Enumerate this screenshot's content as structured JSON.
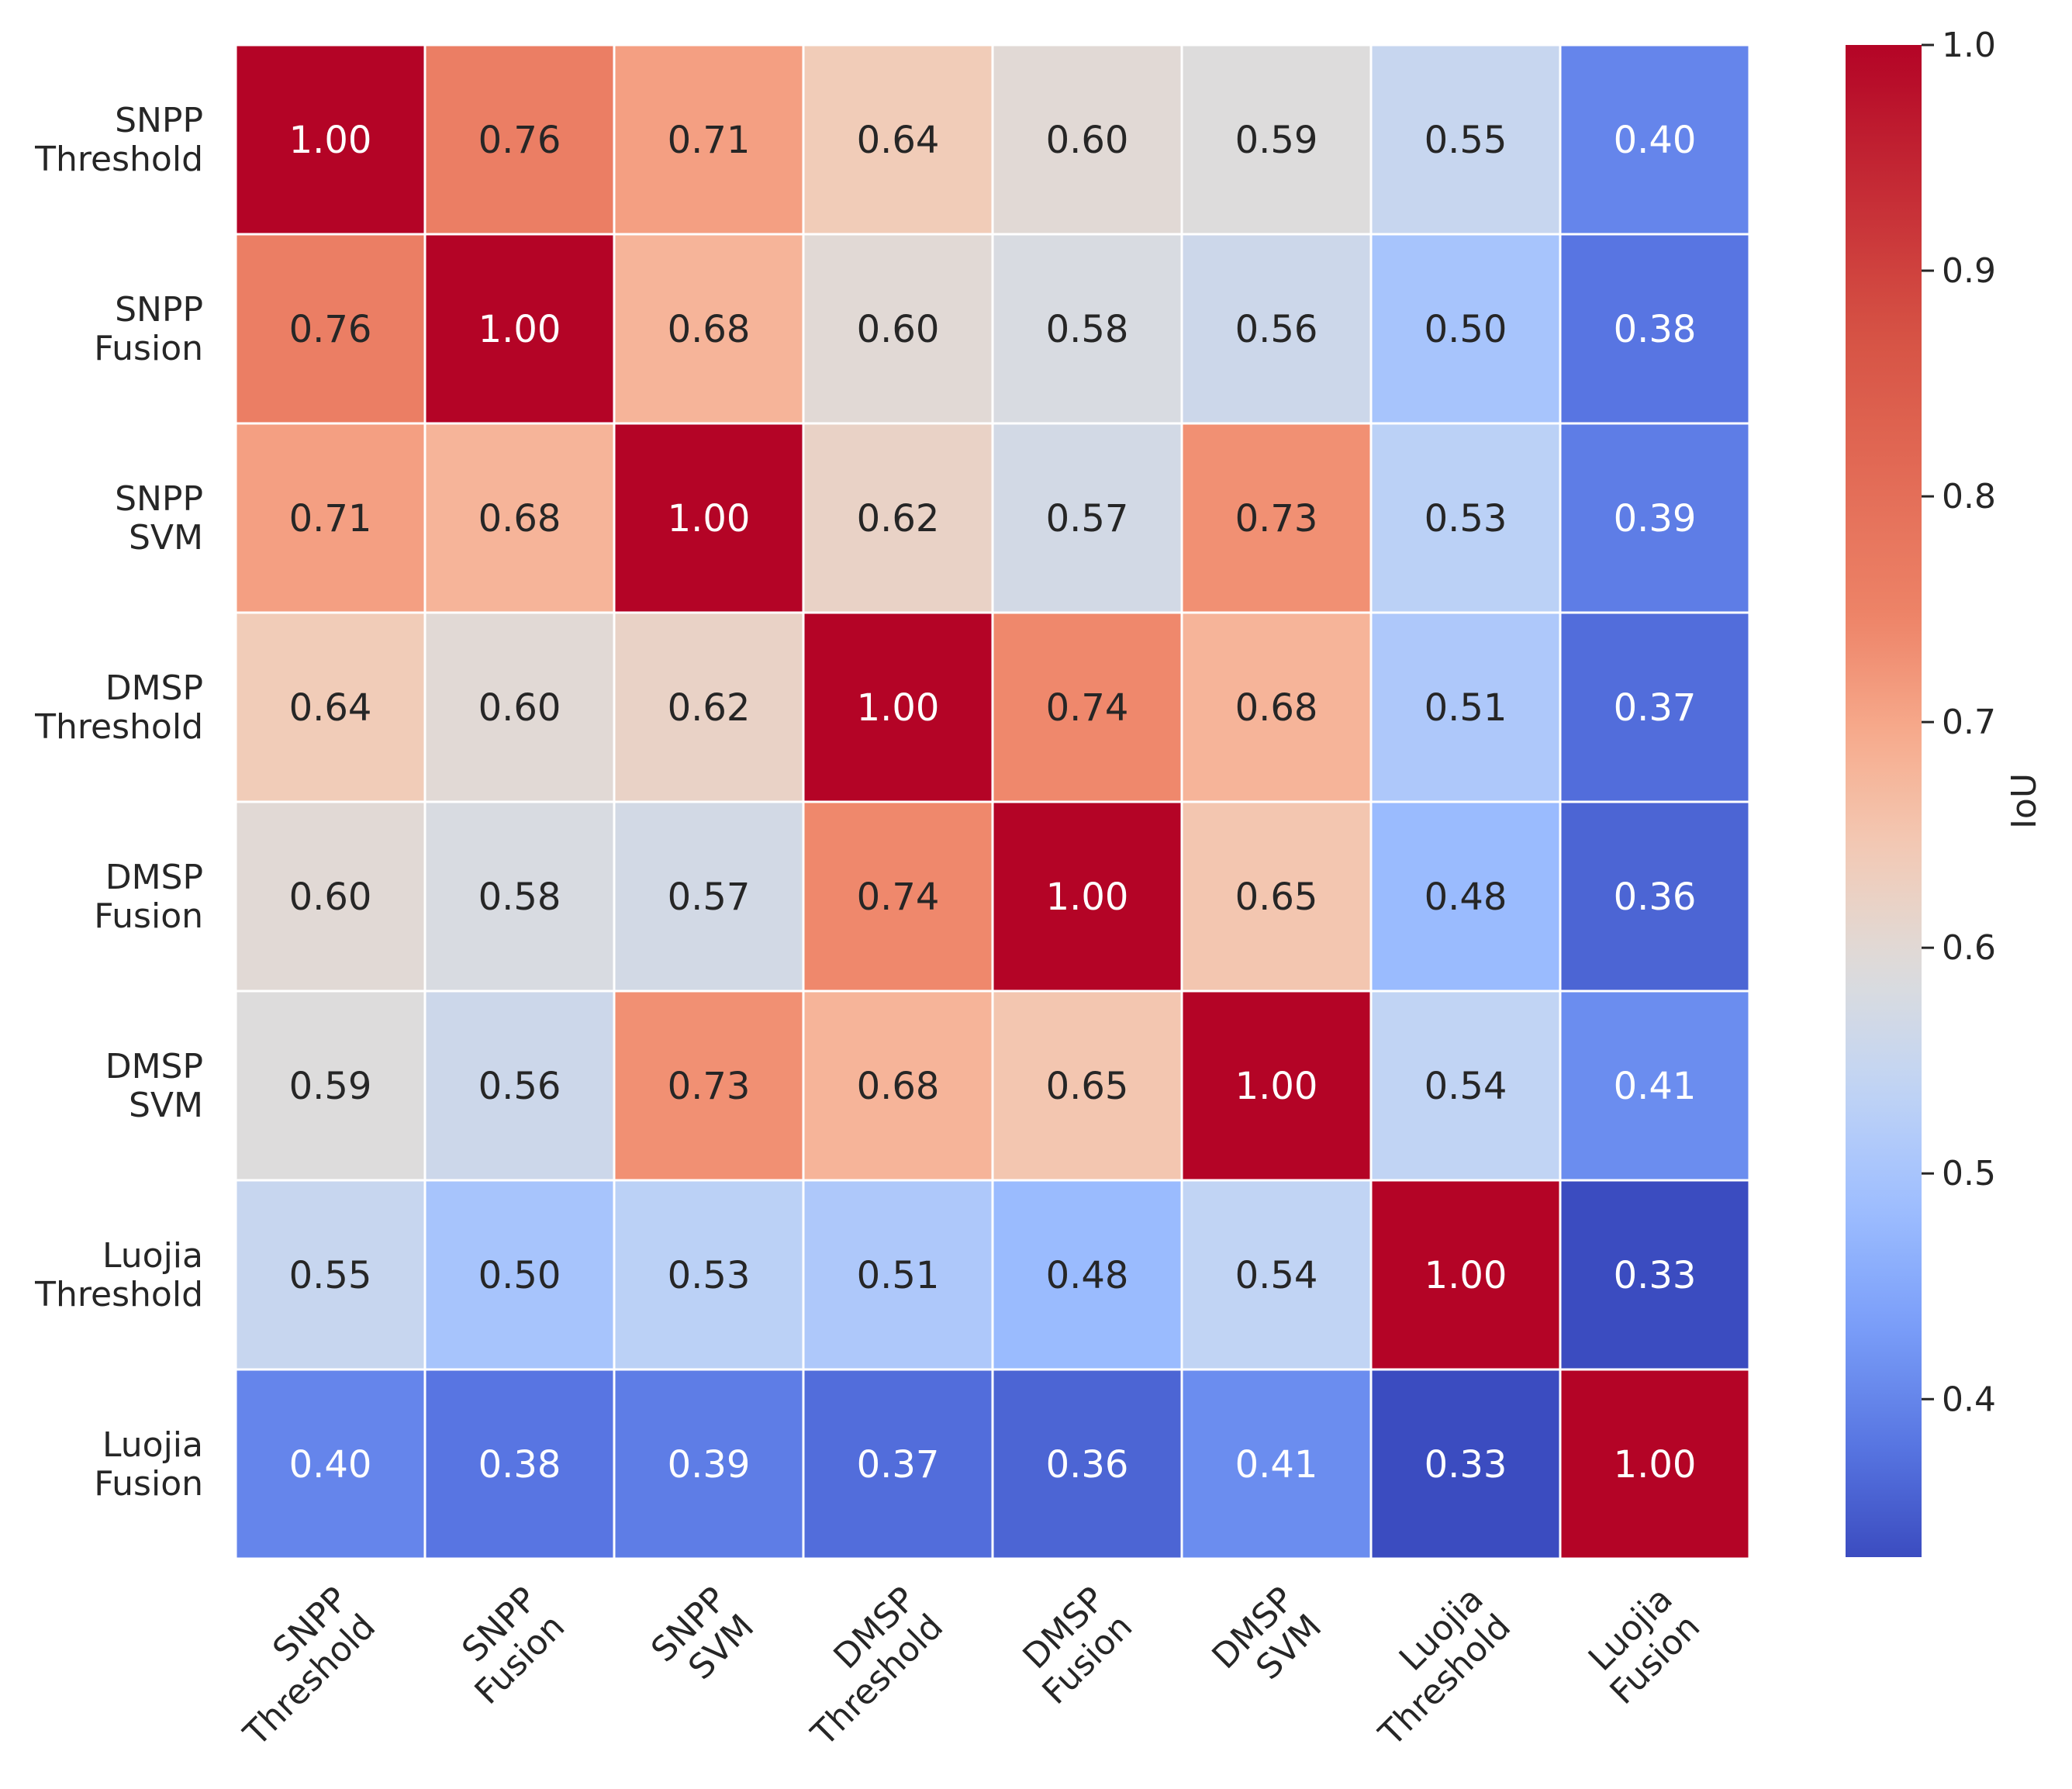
{
  "chart_data": {
    "type": "heatmap",
    "row_labels": [
      [
        "SNPP",
        "Threshold"
      ],
      [
        "SNPP",
        "Fusion"
      ],
      [
        "SNPP",
        "SVM"
      ],
      [
        "DMSP",
        "Threshold"
      ],
      [
        "DMSP",
        "Fusion"
      ],
      [
        "DMSP",
        "SVM"
      ],
      [
        "Luojia",
        "Threshold"
      ],
      [
        "Luojia",
        "Fusion"
      ]
    ],
    "col_labels": [
      [
        "SNPP",
        "Threshold"
      ],
      [
        "SNPP",
        "Fusion"
      ],
      [
        "SNPP",
        "SVM"
      ],
      [
        "DMSP",
        "Threshold"
      ],
      [
        "DMSP",
        "Fusion"
      ],
      [
        "DMSP",
        "SVM"
      ],
      [
        "Luojia",
        "Threshold"
      ],
      [
        "Luojia",
        "Fusion"
      ]
    ],
    "values": [
      [
        1.0,
        0.76,
        0.71,
        0.64,
        0.6,
        0.59,
        0.55,
        0.4
      ],
      [
        0.76,
        1.0,
        0.68,
        0.6,
        0.58,
        0.56,
        0.5,
        0.38
      ],
      [
        0.71,
        0.68,
        1.0,
        0.62,
        0.57,
        0.73,
        0.53,
        0.39
      ],
      [
        0.64,
        0.6,
        0.62,
        1.0,
        0.74,
        0.68,
        0.51,
        0.37
      ],
      [
        0.6,
        0.58,
        0.57,
        0.74,
        1.0,
        0.65,
        0.48,
        0.36
      ],
      [
        0.59,
        0.56,
        0.73,
        0.68,
        0.65,
        1.0,
        0.54,
        0.41
      ],
      [
        0.55,
        0.5,
        0.53,
        0.51,
        0.48,
        0.54,
        1.0,
        0.33
      ],
      [
        0.4,
        0.38,
        0.39,
        0.37,
        0.36,
        0.41,
        0.33,
        1.0
      ]
    ],
    "value_format": "2 decimals",
    "colormap": "coolwarm",
    "colorbar": {
      "label": "IoU",
      "vmin": 0.33,
      "vmax": 1.0,
      "ticks": [
        1.0,
        0.9,
        0.8,
        0.7,
        0.6,
        0.5,
        0.4
      ],
      "tick_labels": [
        "1.0",
        "0.9",
        "0.8",
        "0.7",
        "0.6",
        "0.5",
        "0.4"
      ]
    },
    "colormap_stops": [
      [
        0.0,
        "#3b4cc0"
      ],
      [
        0.125,
        "#5977e3"
      ],
      [
        0.25,
        "#7b9ff9"
      ],
      [
        0.375,
        "#9ebeff"
      ],
      [
        0.5,
        "#c0d4f5"
      ],
      [
        0.625,
        "#dddcdc"
      ],
      [
        0.75,
        "#f2cbb7"
      ],
      [
        0.875,
        "#f7ac8e"
      ],
      [
        1.0,
        "#ee8468"
      ]
    ],
    "colormap_stops_high": [
      [
        0.0,
        "#ee8468"
      ],
      [
        0.5,
        "#d65244"
      ],
      [
        1.0,
        "#b40426"
      ]
    ],
    "title": "",
    "xlabel": "",
    "ylabel": ""
  }
}
